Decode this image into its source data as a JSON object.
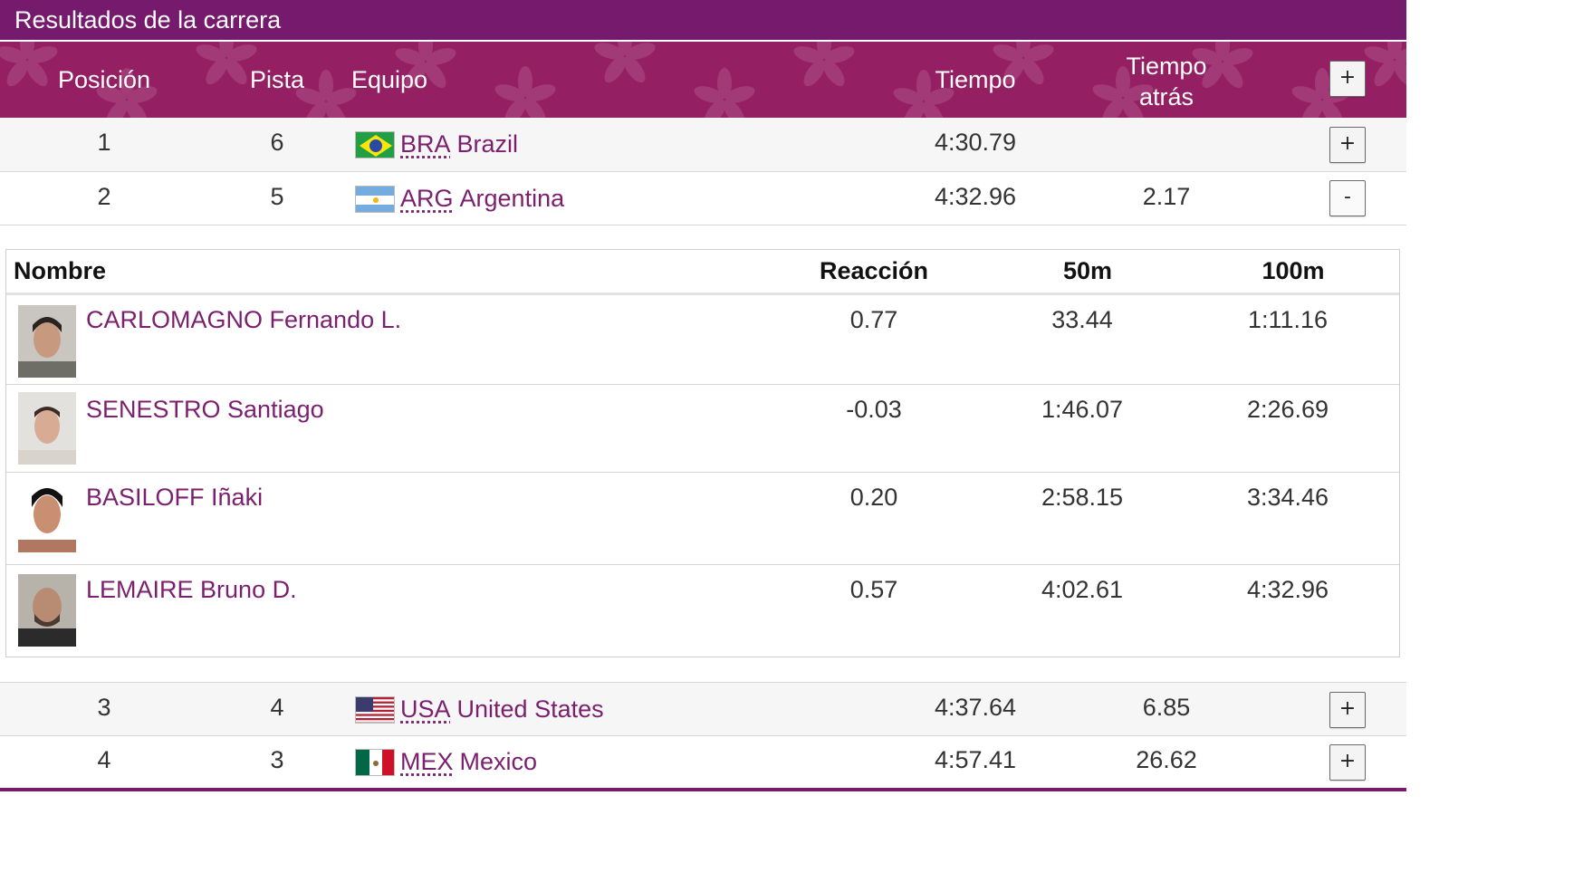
{
  "header": {
    "title": "Resultados de la carrera"
  },
  "columns": {
    "position": "Posición",
    "lane": "Pista",
    "team": "Equipo",
    "time": "Tiempo",
    "behind_line1": "Tiempo",
    "behind_line2": "atrás",
    "expand_all": "+"
  },
  "rows": [
    {
      "position": "1",
      "lane": "6",
      "code": "BRA",
      "country": "Brazil",
      "time": "4:30.79",
      "behind": "",
      "toggle": "+"
    },
    {
      "position": "2",
      "lane": "5",
      "code": "ARG",
      "country": "Argentina",
      "time": "4:32.96",
      "behind": "2.17",
      "toggle": "-"
    },
    {
      "position": "3",
      "lane": "4",
      "code": "USA",
      "country": "United States",
      "time": "4:37.64",
      "behind": "6.85",
      "toggle": "+"
    },
    {
      "position": "4",
      "lane": "3",
      "code": "MEX",
      "country": "Mexico",
      "time": "4:57.41",
      "behind": "26.62",
      "toggle": "+"
    }
  ],
  "detail": {
    "columns": {
      "name": "Nombre",
      "reaction": "Reacción",
      "split50": "50m",
      "split100": "100m"
    },
    "athletes": [
      {
        "name": "CARLOMAGNO Fernando L.",
        "reaction": "0.77",
        "split50": "33.44",
        "split100": "1:11.16"
      },
      {
        "name": "SENESTRO Santiago",
        "reaction": "-0.03",
        "split50": "1:46.07",
        "split100": "2:26.69"
      },
      {
        "name": "BASILOFF Iñaki",
        "reaction": "0.20",
        "split50": "2:58.15",
        "split100": "3:34.46"
      },
      {
        "name": "LEMAIRE Bruno D.",
        "reaction": "0.57",
        "split50": "4:02.61",
        "split100": "4:32.96"
      }
    ]
  },
  "colors": {
    "title_bg": "#761a6e",
    "header_bg": "#941f63",
    "accent_text": "#7b1f6e"
  }
}
